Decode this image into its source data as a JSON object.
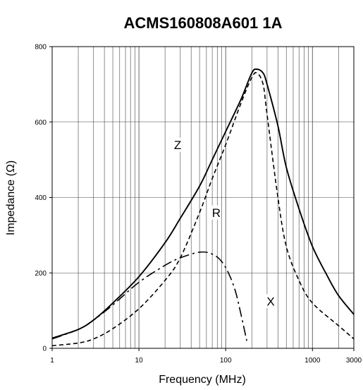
{
  "chart_data": {
    "type": "line",
    "title": "ACMS160808A601 1A",
    "xlabel": "Frequency (MHz)",
    "ylabel": "Impedance (Ω)",
    "x_scale": "log",
    "xlim": [
      1,
      3000
    ],
    "ylim": [
      0,
      800
    ],
    "grid": true,
    "x_ticks": [
      1,
      10,
      100,
      1000,
      3000
    ],
    "x_tick_labels": [
      "1",
      "10",
      "100",
      "1000",
      "3000"
    ],
    "y_ticks": [
      0,
      200,
      400,
      600,
      800
    ],
    "y_tick_labels": [
      "0",
      "200",
      "400",
      "600",
      "800"
    ],
    "series": [
      {
        "name": "Z",
        "line_style": "solid",
        "label_at": [
          28,
          540
        ],
        "points": [
          [
            1,
            27
          ],
          [
            2,
            50
          ],
          [
            3,
            75
          ],
          [
            5,
            120
          ],
          [
            10,
            190
          ],
          [
            20,
            280
          ],
          [
            30,
            345
          ],
          [
            50,
            430
          ],
          [
            70,
            500
          ],
          [
            100,
            575
          ],
          [
            150,
            660
          ],
          [
            200,
            730
          ],
          [
            230,
            740
          ],
          [
            270,
            730
          ],
          [
            300,
            700
          ],
          [
            400,
            590
          ],
          [
            500,
            480
          ],
          [
            700,
            370
          ],
          [
            1000,
            270
          ],
          [
            1500,
            190
          ],
          [
            2000,
            140
          ],
          [
            3000,
            90
          ]
        ]
      },
      {
        "name": "R",
        "line_style": "dashed",
        "label_at": [
          78,
          360
        ],
        "points": [
          [
            1,
            7
          ],
          [
            2,
            14
          ],
          [
            3,
            25
          ],
          [
            5,
            52
          ],
          [
            10,
            105
          ],
          [
            20,
            180
          ],
          [
            30,
            240
          ],
          [
            50,
            360
          ],
          [
            70,
            450
          ],
          [
            100,
            540
          ],
          [
            150,
            650
          ],
          [
            200,
            718
          ],
          [
            230,
            730
          ],
          [
            270,
            700
          ],
          [
            300,
            620
          ],
          [
            400,
            400
          ],
          [
            500,
            270
          ],
          [
            700,
            180
          ],
          [
            1000,
            120
          ],
          [
            2000,
            60
          ],
          [
            3000,
            25
          ]
        ]
      },
      {
        "name": "X",
        "line_style": "dash-dot",
        "label_at": [
          330,
          125
        ],
        "points": [
          [
            1,
            25
          ],
          [
            2,
            50
          ],
          [
            3,
            75
          ],
          [
            5,
            115
          ],
          [
            10,
            175
          ],
          [
            20,
            220
          ],
          [
            30,
            240
          ],
          [
            50,
            255
          ],
          [
            70,
            250
          ],
          [
            90,
            230
          ],
          [
            110,
            195
          ],
          [
            130,
            150
          ],
          [
            150,
            90
          ],
          [
            175,
            20
          ]
        ]
      }
    ]
  }
}
